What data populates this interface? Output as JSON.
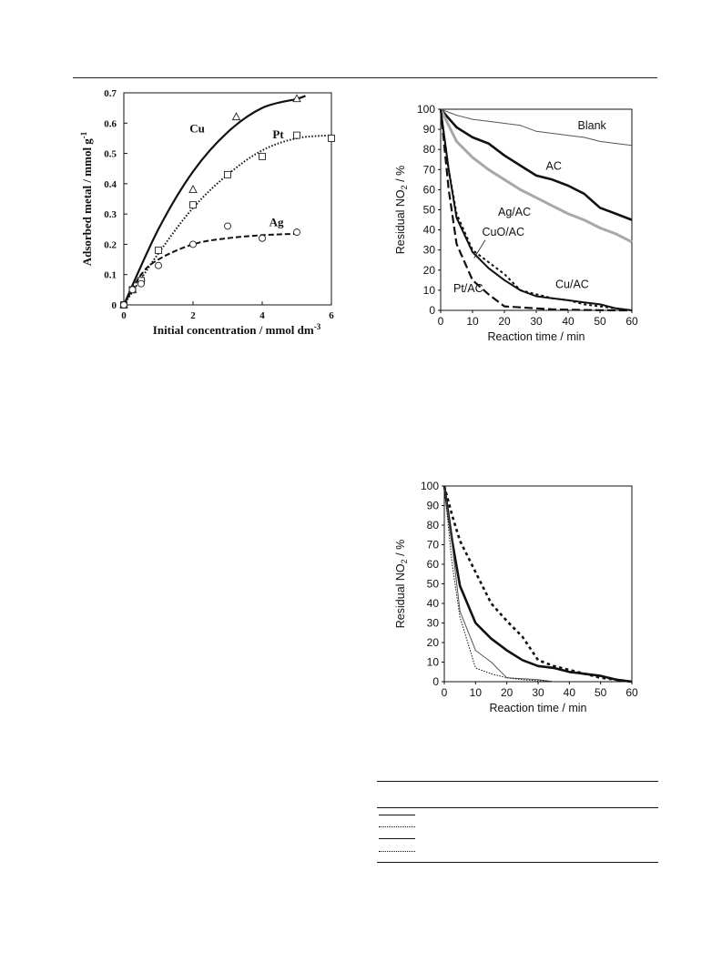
{
  "chart_data": [
    {
      "type": "scatter",
      "title": "",
      "xlabel": "Initial concentration / mmol dm",
      "xlabel_sup": "-3",
      "ylabel": "Adsorbed metal / mmol g",
      "ylabel_sup": "-1",
      "xlim": [
        0,
        6
      ],
      "ylim": [
        0,
        0.7
      ],
      "xticks": [
        "0",
        "2",
        "4",
        "6"
      ],
      "yticks": [
        "0",
        "0.1",
        "0.2",
        "0.3",
        "0.4",
        "0.5",
        "0.6",
        "0.7"
      ],
      "grid": false,
      "series": [
        {
          "name": "Cu",
          "marker": "triangle",
          "line": "solid",
          "points": [
            [
              0,
              0
            ],
            [
              0.25,
              0.05
            ],
            [
              0.5,
              0.09
            ],
            [
              2,
              0.38
            ],
            [
              3.25,
              0.62
            ],
            [
              5,
              0.68
            ]
          ],
          "curve": [
            [
              0,
              0
            ],
            [
              1,
              0.25
            ],
            [
              2,
              0.44
            ],
            [
              3,
              0.57
            ],
            [
              4,
              0.65
            ],
            [
              5,
              0.68
            ],
            [
              5.25,
              0.69
            ]
          ]
        },
        {
          "name": "Pt",
          "marker": "square",
          "line": "dotted",
          "points": [
            [
              0,
              0
            ],
            [
              0.25,
              0.05
            ],
            [
              0.5,
              0.08
            ],
            [
              1,
              0.18
            ],
            [
              2,
              0.33
            ],
            [
              3,
              0.43
            ],
            [
              4,
              0.49
            ],
            [
              5,
              0.56
            ],
            [
              6,
              0.55
            ]
          ],
          "curve": [
            [
              0,
              0
            ],
            [
              1,
              0.17
            ],
            [
              2,
              0.32
            ],
            [
              3,
              0.43
            ],
            [
              4,
              0.51
            ],
            [
              5,
              0.55
            ],
            [
              6,
              0.56
            ]
          ]
        },
        {
          "name": "Ag",
          "marker": "circle",
          "line": "dashed",
          "points": [
            [
              0,
              0
            ],
            [
              0.25,
              0.05
            ],
            [
              0.5,
              0.07
            ],
            [
              1,
              0.13
            ],
            [
              2,
              0.2
            ],
            [
              3,
              0.26
            ],
            [
              4,
              0.22
            ],
            [
              5,
              0.24
            ]
          ],
          "curve": [
            [
              0,
              0
            ],
            [
              0.5,
              0.1
            ],
            [
              1,
              0.15
            ],
            [
              2,
              0.2
            ],
            [
              3,
              0.22
            ],
            [
              4,
              0.23
            ],
            [
              5,
              0.235
            ]
          ]
        }
      ]
    },
    {
      "type": "line",
      "title": "",
      "xlabel": "Reaction time / min",
      "ylabel": "Residual NO",
      "ylabel_sub": "2",
      "ylabel_unit": " / %",
      "xlim": [
        0,
        60
      ],
      "ylim": [
        0,
        100
      ],
      "xticks": [
        "0",
        "10",
        "20",
        "30",
        "40",
        "50",
        "60"
      ],
      "yticks": [
        "0",
        "10",
        "20",
        "30",
        "40",
        "50",
        "60",
        "70",
        "80",
        "90",
        "100"
      ],
      "grid": false,
      "series": [
        {
          "name": "Blank",
          "style": "thin",
          "x": [
            0,
            5,
            10,
            15,
            20,
            25,
            30,
            35,
            40,
            45,
            50,
            55,
            60
          ],
          "y": [
            100,
            97,
            95,
            94,
            93,
            92,
            89,
            88,
            87,
            86,
            84,
            83,
            82
          ]
        },
        {
          "name": "AC",
          "style": "thick",
          "x": [
            0,
            5,
            10,
            15,
            20,
            25,
            30,
            35,
            40,
            45,
            50,
            55,
            60
          ],
          "y": [
            100,
            91,
            86,
            83,
            77,
            72,
            67,
            65,
            62,
            58,
            51,
            48,
            45
          ]
        },
        {
          "name": "Ag/AC",
          "style": "gray",
          "x": [
            0,
            5,
            10,
            15,
            20,
            25,
            30,
            35,
            40,
            45,
            50,
            55,
            60
          ],
          "y": [
            100,
            84,
            76,
            70,
            65,
            60,
            56,
            52,
            48,
            45,
            41,
            38,
            34
          ]
        },
        {
          "name": "CuO/AC",
          "style": "dotted",
          "x": [
            0,
            2.5,
            5,
            10,
            15,
            20,
            25,
            30,
            35,
            40,
            45,
            50,
            55,
            60
          ],
          "y": [
            100,
            70,
            48,
            30,
            24,
            18,
            10,
            8,
            6,
            5,
            3,
            2,
            1,
            0
          ]
        },
        {
          "name": "Cu/AC",
          "style": "solid",
          "x": [
            0,
            2.5,
            5,
            10,
            15,
            20,
            25,
            30,
            35,
            40,
            45,
            50,
            55,
            60
          ],
          "y": [
            100,
            70,
            46,
            29,
            21,
            15,
            10,
            7,
            6,
            5,
            4,
            3,
            1,
            0
          ]
        },
        {
          "name": "Pt/AC",
          "style": "dashed",
          "x": [
            0,
            2.5,
            5,
            10,
            15,
            20,
            25,
            30,
            35,
            40,
            45,
            50,
            55,
            60
          ],
          "y": [
            100,
            60,
            33,
            15,
            8,
            2,
            1.5,
            1,
            0.5,
            0.3,
            0.2,
            0.1,
            0,
            0
          ]
        }
      ],
      "labels": [
        {
          "text": "Blank",
          "x": 43,
          "y": 90
        },
        {
          "text": "AC",
          "x": 33,
          "y": 70
        },
        {
          "text": "Ag/AC",
          "x": 18,
          "y": 47
        },
        {
          "text": "CuO/AC",
          "x": 13,
          "y": 37
        },
        {
          "text": "Cu/AC",
          "x": 36,
          "y": 11
        },
        {
          "text": "Pt/AC",
          "x": 4,
          "y": 9
        }
      ]
    },
    {
      "type": "line",
      "title": "",
      "xlabel": "Reaction time / min",
      "ylabel": "Residual NO",
      "ylabel_sub": "2",
      "ylabel_unit": " / %",
      "xlim": [
        0,
        60
      ],
      "ylim": [
        0,
        100
      ],
      "xticks": [
        "0",
        "10",
        "20",
        "30",
        "40",
        "50",
        "60"
      ],
      "yticks": [
        "0",
        "10",
        "20",
        "30",
        "40",
        "50",
        "60",
        "70",
        "80",
        "90",
        "100"
      ],
      "grid": false,
      "series": [
        {
          "style": "thick",
          "x": [
            0,
            2.5,
            5,
            10,
            15,
            20,
            25,
            30,
            35,
            40,
            45,
            50,
            55,
            60
          ],
          "y": [
            100,
            72,
            49,
            30,
            22,
            16,
            11,
            8,
            7,
            5,
            4,
            3,
            1,
            0
          ]
        },
        {
          "style": "thick-dotted",
          "x": [
            0,
            2.5,
            5,
            10,
            15,
            20,
            25,
            30,
            35,
            40,
            45,
            50,
            55,
            60
          ],
          "y": [
            100,
            85,
            72,
            56,
            40,
            31,
            23,
            11,
            8,
            6,
            4,
            2,
            1,
            0
          ]
        },
        {
          "style": "thin",
          "x": [
            0,
            2.5,
            5,
            10,
            15,
            20,
            25,
            30,
            35
          ],
          "y": [
            100,
            70,
            36,
            16,
            10,
            2,
            1.5,
            1,
            0
          ]
        },
        {
          "style": "thin-dotted",
          "x": [
            0,
            2.5,
            5,
            10,
            15,
            20,
            25,
            30,
            35
          ],
          "y": [
            100,
            60,
            33,
            7,
            4,
            2,
            1,
            0.5,
            0
          ]
        }
      ]
    }
  ],
  "legend_table": {
    "rows": [
      {
        "style": "solid"
      },
      {
        "style": "dotted"
      },
      {
        "style": "solid"
      },
      {
        "style": "dotted"
      }
    ]
  },
  "colors": {
    "ink": "#111111",
    "gray_series": "#a8a8a8",
    "thin_series": "#555555"
  }
}
